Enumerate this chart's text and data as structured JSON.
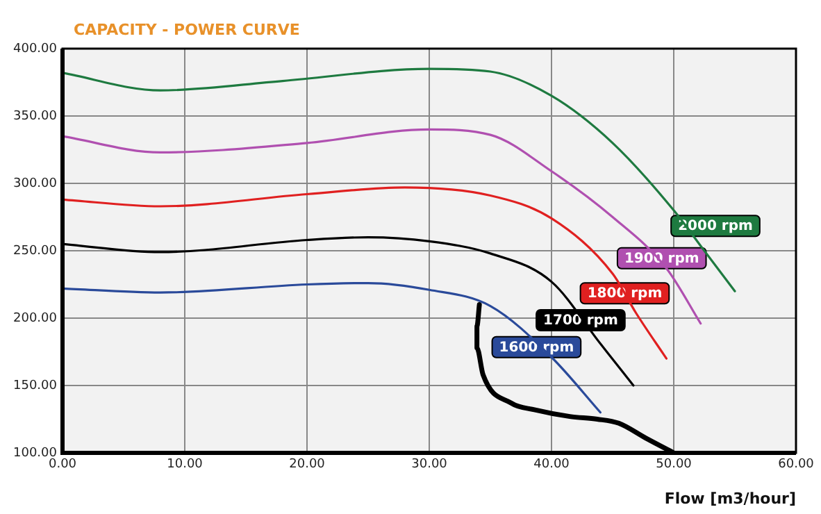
{
  "chart_data": {
    "type": "line",
    "title": "CAPACITY - POWER CURVE",
    "xlabel": "Flow [m3/hour]",
    "xlim": [
      0,
      60
    ],
    "ylim": [
      100,
      400
    ],
    "xticks": [
      {
        "value": 0,
        "label": "0.00"
      },
      {
        "value": 10,
        "label": "10.00"
      },
      {
        "value": 20,
        "label": "20.00"
      },
      {
        "value": 30,
        "label": "30.00"
      },
      {
        "value": 40,
        "label": "40.00"
      },
      {
        "value": 50,
        "label": "50.00"
      },
      {
        "value": 60,
        "label": "60.00"
      }
    ],
    "yticks": [
      {
        "value": 100,
        "label": "100.00"
      },
      {
        "value": 150,
        "label": "150.00"
      },
      {
        "value": 200,
        "label": "200.00"
      },
      {
        "value": 250,
        "label": "250.00"
      },
      {
        "value": 300,
        "label": "300.00"
      },
      {
        "value": 350,
        "label": "350.00"
      },
      {
        "value": 400,
        "label": "400.00"
      }
    ],
    "grid": true,
    "legend": false,
    "marker": "none",
    "line_style": "solid",
    "series": [
      {
        "name": "2000 rpm",
        "color": "#1e7a40",
        "x": [
          0,
          8,
          18,
          30,
          35,
          40,
          45,
          50,
          52.5,
          55
        ],
        "values": [
          382,
          369,
          376,
          385,
          383,
          365,
          330,
          280,
          250,
          220
        ]
      },
      {
        "name": "1900 rpm",
        "color": "#b050b0",
        "x": [
          0,
          8,
          20,
          30,
          35,
          40,
          45,
          49.4,
          52.2
        ],
        "values": [
          335,
          323,
          330,
          340,
          336,
          309,
          275,
          237,
          196
        ]
      },
      {
        "name": "1800 rpm",
        "color": "#e02020",
        "x": [
          0,
          8,
          20,
          28,
          35,
          40,
          45,
          46.9,
          49.4
        ],
        "values": [
          288,
          283,
          292,
          297,
          291,
          274,
          233,
          204,
          170
        ]
      },
      {
        "name": "1700 rpm",
        "color": "#000000",
        "x": [
          0,
          8,
          20,
          25,
          30,
          35,
          40,
          44,
          46.7
        ],
        "values": [
          255,
          249,
          258,
          260,
          257,
          248,
          227,
          181,
          150
        ]
      },
      {
        "name": "1600 rpm",
        "color": "#2a4a9a",
        "x": [
          0,
          8,
          20,
          25,
          30,
          35,
          40,
          44
        ],
        "values": [
          222,
          219,
          225,
          226,
          221,
          209,
          171,
          130
        ]
      },
      {
        "color": "#000000",
        "x": [
          34.1,
          33.9,
          33.9,
          34.4,
          36.7,
          38.6,
          41.5,
          43.75,
          45.5,
          47.7,
          50
        ],
        "values": [
          210,
          194,
          178,
          158,
          137,
          132,
          127,
          125,
          122,
          111,
          100
        ]
      }
    ]
  }
}
